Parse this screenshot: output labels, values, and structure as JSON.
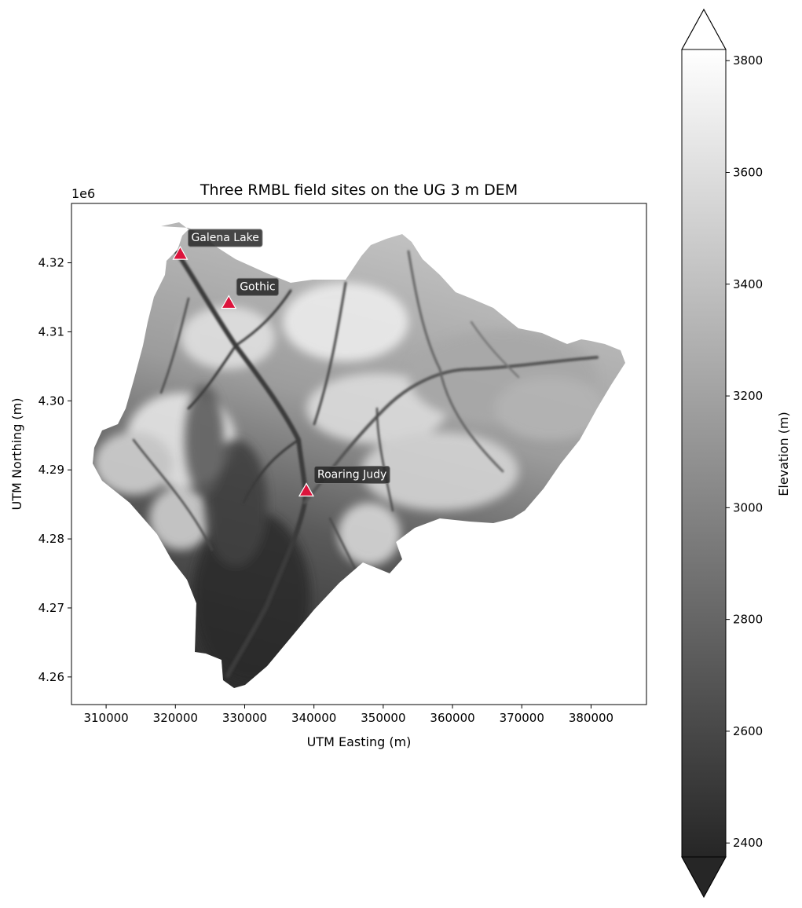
{
  "title": "Three RMBL field sites on the UG 3 m DEM",
  "x_axis": {
    "label": "UTM Easting (m)",
    "range": [
      305000,
      388000
    ],
    "ticks": [
      310000,
      320000,
      330000,
      340000,
      350000,
      360000,
      370000,
      380000
    ],
    "tick_labels": [
      "310000",
      "320000",
      "330000",
      "340000",
      "350000",
      "360000",
      "370000",
      "380000"
    ]
  },
  "y_axis": {
    "label": "UTM Northing (m)",
    "range": [
      4256000,
      4328600
    ],
    "offset_label": "1e6",
    "ticks": [
      4260000,
      4270000,
      4280000,
      4290000,
      4300000,
      4310000,
      4320000
    ],
    "tick_labels": [
      "4.26",
      "4.27",
      "4.28",
      "4.29",
      "4.30",
      "4.31",
      "4.32"
    ]
  },
  "colorbar": {
    "label": "Elevation (m)",
    "colormap": "gray",
    "range": [
      2375,
      3820
    ],
    "extend": "both",
    "ticks": [
      2400,
      2600,
      2800,
      3000,
      3200,
      3400,
      3600,
      3800
    ],
    "tick_labels": [
      "2400",
      "2600",
      "2800",
      "3000",
      "3200",
      "3400",
      "3600",
      "3800"
    ],
    "color_low": "#262626",
    "color_high": "#ffffff"
  },
  "sites": [
    {
      "name": "Galena Lake",
      "easting": 320700,
      "northing": 4321200
    },
    {
      "name": "Gothic",
      "easting": 327700,
      "northing": 4314100
    },
    {
      "name": "Roaring Judy",
      "easting": 338900,
      "northing": 4286900
    }
  ],
  "marker_color": "#dc143c",
  "label_box_color": "#262626"
}
